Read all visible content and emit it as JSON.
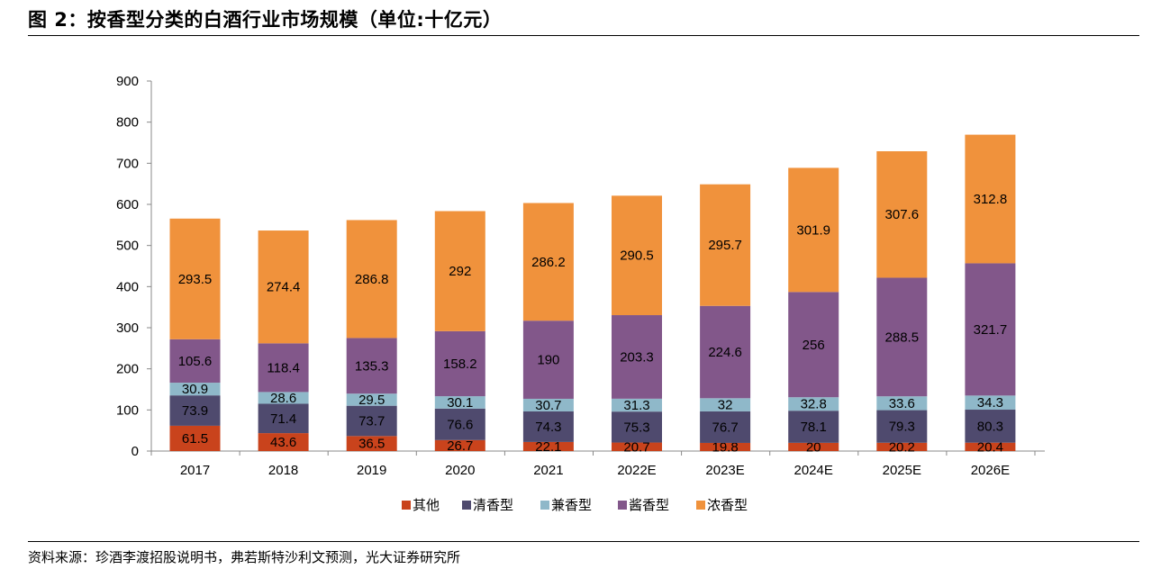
{
  "figure": {
    "title": "图 2：按香型分类的白酒行业市场规模（单位:十亿元）",
    "source": "资料来源：珍酒李渡招股说明书，弗若斯特沙利文预测，光大证券研究所"
  },
  "chart_data": {
    "type": "bar",
    "stacked": true,
    "categories": [
      "2017",
      "2018",
      "2019",
      "2020",
      "2021",
      "2022E",
      "2023E",
      "2024E",
      "2025E",
      "2026E"
    ],
    "series": [
      {
        "name": "其他",
        "color": "#c9431c",
        "values": [
          61.5,
          43.6,
          36.5,
          26.7,
          22.1,
          20.7,
          19.8,
          20,
          20.2,
          20.4
        ]
      },
      {
        "name": "清香型",
        "color": "#4f4a6e",
        "values": [
          73.9,
          71.4,
          73.7,
          76.6,
          74.3,
          75.3,
          76.7,
          78.1,
          79.3,
          80.3
        ]
      },
      {
        "name": "兼香型",
        "color": "#8fb8c9",
        "values": [
          30.9,
          28.6,
          29.5,
          30.1,
          30.7,
          31.3,
          32,
          32.8,
          33.6,
          34.3
        ]
      },
      {
        "name": "酱香型",
        "color": "#82578a",
        "values": [
          105.6,
          118.4,
          135.3,
          158.2,
          190,
          203.3,
          224.6,
          256,
          288.5,
          321.7
        ]
      },
      {
        "name": "浓香型",
        "color": "#f0923c",
        "values": [
          293.5,
          274.4,
          286.8,
          292,
          286.2,
          290.5,
          295.7,
          301.9,
          307.6,
          312.8
        ]
      }
    ],
    "ylim": [
      0,
      900
    ],
    "yticks": [
      "0",
      "100",
      "200",
      "300",
      "400",
      "500",
      "600",
      "700",
      "800",
      "900"
    ],
    "grid": false,
    "legend": "bottom",
    "data_labels": true
  }
}
